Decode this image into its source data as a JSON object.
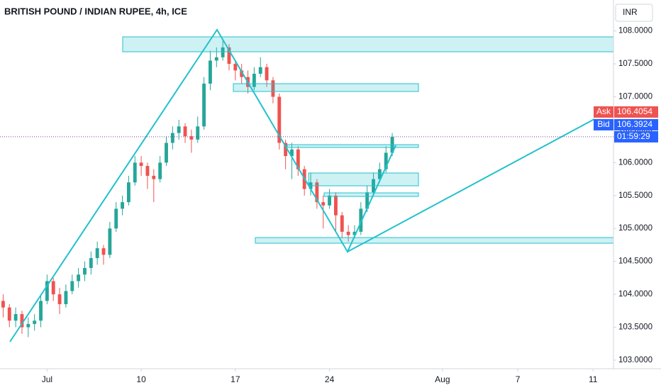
{
  "chart_data": {
    "type": "candlestick",
    "title": "BRITISH POUND / INDIAN RUPEE, 4h, ICE",
    "currency": "INR",
    "up_color": "#26a69a",
    "down_color": "#ef5350",
    "x": [
      -14,
      -12,
      -10,
      -8,
      -6,
      -4,
      -2,
      0,
      2,
      4,
      6,
      8,
      10,
      12,
      14,
      16,
      18,
      20,
      22,
      24,
      26,
      28,
      30,
      32,
      34,
      36,
      38,
      40,
      42,
      44,
      46,
      48,
      50,
      52,
      54,
      56,
      58,
      60,
      62,
      64,
      66,
      68,
      70,
      72,
      74,
      76,
      78,
      80,
      82,
      84,
      86,
      88,
      90,
      92,
      94,
      96,
      98,
      100,
      102,
      104,
      106,
      108,
      110
    ],
    "open": [
      103.9,
      103.8,
      103.6,
      103.7,
      103.5,
      103.55,
      103.6,
      103.9,
      104.2,
      104.0,
      103.85,
      104.05,
      104.2,
      104.3,
      104.4,
      104.55,
      104.7,
      104.6,
      105.0,
      105.3,
      105.4,
      105.7,
      106.0,
      105.95,
      105.8,
      105.75,
      106.0,
      106.3,
      106.45,
      106.55,
      106.4,
      106.35,
      106.55,
      107.2,
      107.55,
      107.6,
      107.75,
      107.5,
      107.4,
      107.3,
      107.15,
      107.35,
      107.45,
      107.25,
      107.0,
      106.3,
      106.1,
      106.2,
      105.9,
      105.6,
      105.7,
      105.4,
      105.35,
      105.5,
      105.2,
      104.95,
      104.9,
      104.95,
      105.3,
      105.55,
      105.75,
      105.9,
      106.15
    ],
    "high": [
      104.0,
      103.85,
      103.8,
      103.75,
      103.65,
      103.7,
      104.0,
      104.3,
      104.25,
      104.1,
      104.15,
      104.3,
      104.4,
      104.5,
      104.65,
      104.8,
      104.75,
      105.1,
      105.4,
      105.5,
      105.8,
      106.1,
      106.1,
      106.0,
      105.9,
      106.1,
      106.4,
      106.55,
      106.65,
      106.6,
      106.5,
      106.7,
      107.3,
      107.7,
      107.75,
      107.85,
      107.8,
      107.55,
      107.5,
      107.4,
      107.45,
      107.6,
      107.5,
      107.3,
      107.05,
      106.35,
      106.3,
      106.25,
      105.95,
      105.85,
      105.75,
      105.5,
      105.6,
      105.55,
      105.25,
      105.05,
      105.05,
      105.4,
      105.65,
      105.85,
      106.0,
      106.25,
      106.45
    ],
    "low": [
      103.65,
      103.5,
      103.5,
      103.4,
      103.35,
      103.45,
      103.5,
      103.85,
      103.9,
      103.7,
      103.8,
      104.0,
      104.1,
      104.2,
      104.3,
      104.45,
      104.45,
      104.55,
      104.95,
      105.2,
      105.35,
      105.65,
      105.8,
      105.6,
      105.4,
      105.7,
      105.95,
      106.2,
      106.35,
      106.3,
      106.15,
      106.3,
      106.5,
      107.1,
      107.45,
      107.55,
      107.4,
      107.25,
      107.2,
      107.05,
      107.1,
      107.3,
      107.15,
      106.9,
      106.2,
      105.9,
      105.75,
      105.8,
      105.5,
      105.5,
      105.3,
      105.0,
      105.3,
      104.95,
      104.85,
      104.8,
      104.85,
      104.9,
      105.25,
      105.5,
      105.7,
      105.85,
      106.1
    ],
    "close": [
      103.8,
      103.6,
      103.7,
      103.5,
      103.55,
      103.6,
      103.9,
      104.2,
      104.0,
      103.85,
      104.05,
      104.2,
      104.3,
      104.4,
      104.55,
      104.7,
      104.6,
      105.0,
      105.3,
      105.4,
      105.7,
      106.0,
      105.95,
      105.8,
      105.75,
      106.0,
      106.3,
      106.45,
      106.55,
      106.4,
      106.35,
      106.55,
      107.2,
      107.55,
      107.6,
      107.75,
      107.5,
      107.4,
      107.3,
      107.15,
      107.35,
      107.45,
      107.25,
      107.0,
      106.3,
      106.1,
      106.2,
      105.9,
      105.6,
      105.7,
      105.4,
      105.35,
      105.5,
      105.2,
      104.95,
      104.9,
      104.95,
      105.3,
      105.55,
      105.75,
      105.9,
      106.15,
      106.39
    ],
    "xlim": [
      -15,
      180.5
    ],
    "xticks": [
      {
        "value": 0,
        "label": "Jul"
      },
      {
        "value": 30,
        "label": "10"
      },
      {
        "value": 60,
        "label": "17"
      },
      {
        "value": 90,
        "label": "24"
      },
      {
        "value": 126,
        "label": "Aug"
      },
      {
        "value": 150,
        "label": "7"
      },
      {
        "value": 174,
        "label": "11"
      }
    ],
    "ylim": [
      102.87,
      108.47
    ],
    "yticks": [
      {
        "value": 103,
        "label": "103.0000"
      },
      {
        "value": 103.5,
        "label": "103.5000"
      },
      {
        "value": 104,
        "label": "104.0000"
      },
      {
        "value": 104.5,
        "label": "104.5000"
      },
      {
        "value": 105,
        "label": "105.0000"
      },
      {
        "value": 105.5,
        "label": "105.5000"
      },
      {
        "value": 106,
        "label": "106.0000"
      },
      {
        "value": 106.5,
        "label": "106.5000"
      },
      {
        "value": 107,
        "label": "107.0000"
      },
      {
        "value": 107.5,
        "label": "107.5000"
      },
      {
        "value": 108,
        "label": "108.0000"
      }
    ],
    "ask": {
      "name": "Ask",
      "value": 106.4054,
      "label": "106.4054"
    },
    "bid": {
      "name": "Bid",
      "value": 106.3924,
      "label": "106.3924"
    },
    "countdown": "01:59:29"
  }
}
